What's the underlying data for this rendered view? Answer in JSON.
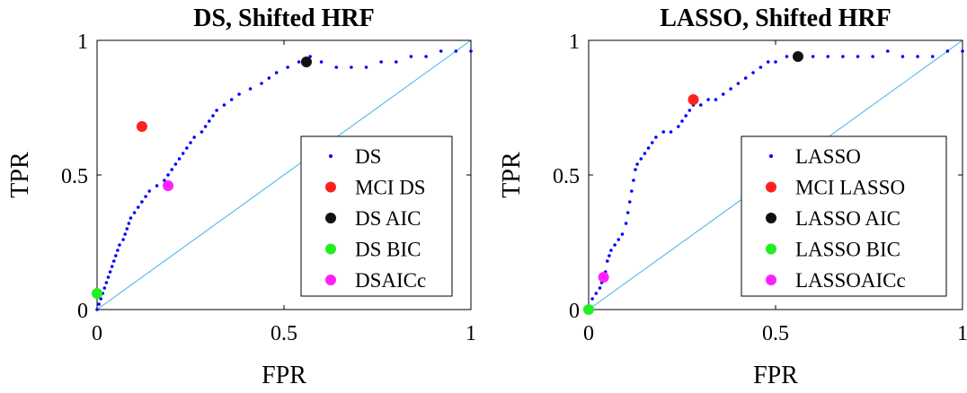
{
  "chart_data": [
    {
      "type": "scatter",
      "title": "DS, Shifted HRF",
      "xlabel": "FPR",
      "ylabel": "TPR",
      "xlim": [
        0,
        1
      ],
      "ylim": [
        0,
        1
      ],
      "xticks": [
        "0",
        "0.5",
        "1"
      ],
      "yticks": [
        "0",
        "0.5",
        "1"
      ],
      "legend_position": "bottom-right",
      "diagonal": {
        "x": [
          0,
          1
        ],
        "y": [
          0,
          1
        ],
        "color": "#3cb4e6"
      },
      "series": [
        {
          "name": "DS",
          "kind": "roc-dots",
          "color": "#0000ff",
          "points": [
            [
              0,
              0
            ],
            [
              0.005,
              0.02
            ],
            [
              0.01,
              0.04
            ],
            [
              0.015,
              0.06
            ],
            [
              0.02,
              0.08
            ],
            [
              0.025,
              0.1
            ],
            [
              0.03,
              0.12
            ],
            [
              0.035,
              0.14
            ],
            [
              0.04,
              0.16
            ],
            [
              0.045,
              0.18
            ],
            [
              0.05,
              0.2
            ],
            [
              0.055,
              0.22
            ],
            [
              0.06,
              0.24
            ],
            [
              0.07,
              0.26
            ],
            [
              0.075,
              0.28
            ],
            [
              0.08,
              0.3
            ],
            [
              0.085,
              0.32
            ],
            [
              0.09,
              0.34
            ],
            [
              0.1,
              0.36
            ],
            [
              0.11,
              0.38
            ],
            [
              0.12,
              0.4
            ],
            [
              0.13,
              0.42
            ],
            [
              0.14,
              0.44
            ],
            [
              0.16,
              0.46
            ],
            [
              0.18,
              0.48
            ],
            [
              0.19,
              0.5
            ],
            [
              0.2,
              0.52
            ],
            [
              0.21,
              0.54
            ],
            [
              0.22,
              0.56
            ],
            [
              0.23,
              0.58
            ],
            [
              0.24,
              0.6
            ],
            [
              0.25,
              0.62
            ],
            [
              0.26,
              0.64
            ],
            [
              0.28,
              0.66
            ],
            [
              0.29,
              0.68
            ],
            [
              0.3,
              0.7
            ],
            [
              0.31,
              0.72
            ],
            [
              0.32,
              0.74
            ],
            [
              0.34,
              0.76
            ],
            [
              0.36,
              0.78
            ],
            [
              0.38,
              0.8
            ],
            [
              0.41,
              0.82
            ],
            [
              0.44,
              0.84
            ],
            [
              0.46,
              0.86
            ],
            [
              0.48,
              0.88
            ],
            [
              0.51,
              0.9
            ],
            [
              0.54,
              0.92
            ],
            [
              0.57,
              0.94
            ],
            [
              0.6,
              0.92
            ],
            [
              0.64,
              0.9
            ],
            [
              0.68,
              0.9
            ],
            [
              0.72,
              0.9
            ],
            [
              0.76,
              0.92
            ],
            [
              0.8,
              0.92
            ],
            [
              0.84,
              0.94
            ],
            [
              0.88,
              0.94
            ],
            [
              0.92,
              0.96
            ],
            [
              0.96,
              0.96
            ],
            [
              1,
              0.96
            ]
          ]
        },
        {
          "name": "MCI DS",
          "kind": "marker",
          "color": "#ff2020",
          "x": 0.12,
          "y": 0.68
        },
        {
          "name": "DS AIC",
          "kind": "marker",
          "color": "#111111",
          "x": 0.56,
          "y": 0.92
        },
        {
          "name": "DS BIC",
          "kind": "marker",
          "color": "#22ee22",
          "x": 0.0,
          "y": 0.06
        },
        {
          "name": "DSAICc",
          "kind": "marker",
          "color": "#ff20ff",
          "x": 0.19,
          "y": 0.46
        }
      ]
    },
    {
      "type": "scatter",
      "title": "LASSO, Shifted HRF",
      "xlabel": "FPR",
      "ylabel": "TPR",
      "xlim": [
        0,
        1
      ],
      "ylim": [
        0,
        1
      ],
      "xticks": [
        "0",
        "0.5",
        "1"
      ],
      "yticks": [
        "0",
        "0.5",
        "1"
      ],
      "legend_position": "bottom-right",
      "diagonal": {
        "x": [
          0,
          1
        ],
        "y": [
          0,
          1
        ],
        "color": "#3cb4e6"
      },
      "series": [
        {
          "name": "LASSO",
          "kind": "roc-dots",
          "color": "#0000ff",
          "points": [
            [
              0,
              0
            ],
            [
              0.01,
              0.04
            ],
            [
              0.02,
              0.06
            ],
            [
              0.03,
              0.08
            ],
            [
              0.035,
              0.1
            ],
            [
              0.04,
              0.12
            ],
            [
              0.045,
              0.14
            ],
            [
              0.05,
              0.18
            ],
            [
              0.055,
              0.2
            ],
            [
              0.06,
              0.22
            ],
            [
              0.07,
              0.24
            ],
            [
              0.08,
              0.26
            ],
            [
              0.09,
              0.28
            ],
            [
              0.1,
              0.32
            ],
            [
              0.105,
              0.36
            ],
            [
              0.11,
              0.4
            ],
            [
              0.115,
              0.44
            ],
            [
              0.12,
              0.48
            ],
            [
              0.125,
              0.52
            ],
            [
              0.13,
              0.54
            ],
            [
              0.14,
              0.56
            ],
            [
              0.15,
              0.58
            ],
            [
              0.16,
              0.6
            ],
            [
              0.17,
              0.62
            ],
            [
              0.18,
              0.64
            ],
            [
              0.2,
              0.66
            ],
            [
              0.22,
              0.66
            ],
            [
              0.24,
              0.68
            ],
            [
              0.25,
              0.7
            ],
            [
              0.26,
              0.72
            ],
            [
              0.27,
              0.74
            ],
            [
              0.28,
              0.76
            ],
            [
              0.3,
              0.76
            ],
            [
              0.32,
              0.78
            ],
            [
              0.34,
              0.78
            ],
            [
              0.36,
              0.8
            ],
            [
              0.38,
              0.82
            ],
            [
              0.4,
              0.84
            ],
            [
              0.42,
              0.86
            ],
            [
              0.44,
              0.88
            ],
            [
              0.46,
              0.9
            ],
            [
              0.48,
              0.92
            ],
            [
              0.5,
              0.92
            ],
            [
              0.53,
              0.94
            ],
            [
              0.56,
              0.94
            ],
            [
              0.6,
              0.94
            ],
            [
              0.64,
              0.94
            ],
            [
              0.68,
              0.94
            ],
            [
              0.72,
              0.94
            ],
            [
              0.76,
              0.94
            ],
            [
              0.8,
              0.96
            ],
            [
              0.84,
              0.94
            ],
            [
              0.88,
              0.94
            ],
            [
              0.92,
              0.94
            ],
            [
              0.96,
              0.96
            ],
            [
              1,
              0.96
            ]
          ]
        },
        {
          "name": "MCI LASSO",
          "kind": "marker",
          "color": "#ff2020",
          "x": 0.28,
          "y": 0.78
        },
        {
          "name": "LASSO AIC",
          "kind": "marker",
          "color": "#111111",
          "x": 0.56,
          "y": 0.94
        },
        {
          "name": "LASSO BIC",
          "kind": "marker",
          "color": "#22ee22",
          "x": 0.0,
          "y": 0.0
        },
        {
          "name": "LASSOAICc",
          "kind": "marker",
          "color": "#ff20ff",
          "x": 0.04,
          "y": 0.12
        }
      ]
    }
  ]
}
